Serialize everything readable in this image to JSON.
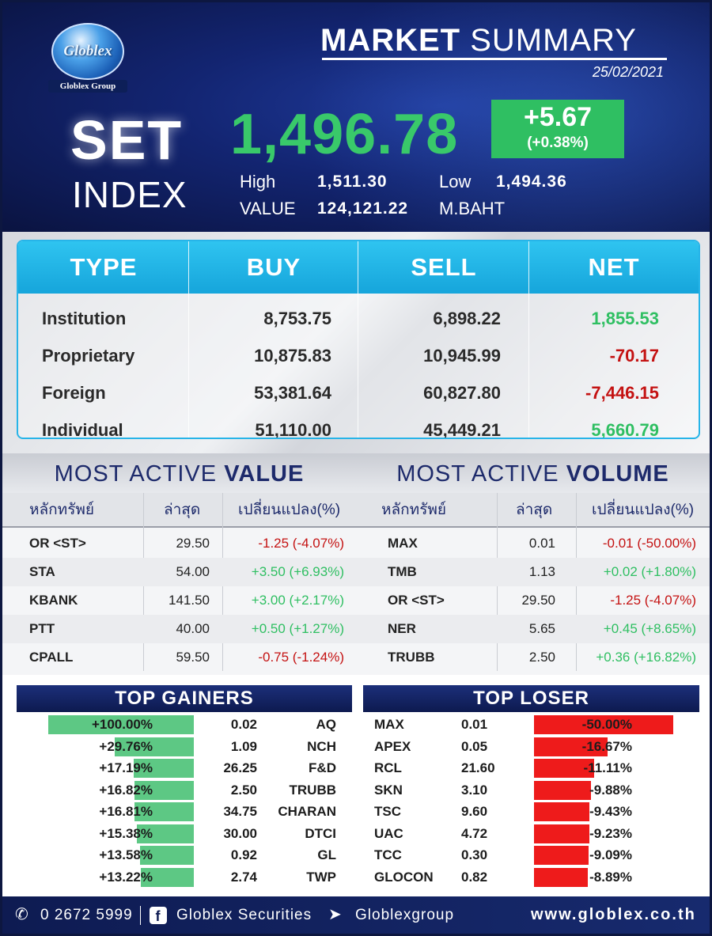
{
  "header": {
    "logo_text": "Globlex",
    "logo_group": "Globlex Group",
    "title_bold": "MARKET",
    "title_light": "SUMMARY",
    "date": "25/02/2021",
    "index_name_1": "SET",
    "index_name_2": "INDEX",
    "index_value": "1,496.78",
    "change": "+5.67",
    "change_pct": "(+0.38%)",
    "high_label": "High",
    "high_value": "1,511.30",
    "low_label": "Low",
    "low_value": "1,494.36",
    "value_label": "VALUE",
    "value_amount": "124,121.22",
    "value_unit": "M.BAHT",
    "colors": {
      "background": "#132572",
      "positive": "#39c96a",
      "change_box": "#2fbf62"
    }
  },
  "investor_table": {
    "headers": [
      "TYPE",
      "BUY",
      "SELL",
      "NET"
    ],
    "rows": [
      {
        "type": "Institution",
        "buy": "8,753.75",
        "sell": "6,898.22",
        "net": "1,855.53",
        "direction": "up"
      },
      {
        "type": "Proprietary",
        "buy": "10,875.83",
        "sell": "10,945.99",
        "net": "-70.17",
        "direction": "down"
      },
      {
        "type": "Foreign",
        "buy": "53,381.64",
        "sell": "60,827.80",
        "net": "-7,446.15",
        "direction": "down"
      },
      {
        "type": "Individual",
        "buy": "51,110.00",
        "sell": "45,449.21",
        "net": "5,660.79",
        "direction": "up"
      }
    ],
    "colors": {
      "header": "#16a5db",
      "positive": "#2fbf62",
      "negative": "#c41212"
    }
  },
  "most_active_value": {
    "title_light": "MOST ACTIVE",
    "title_bold": "VALUE",
    "col_symbol": "หลักทรัพย์",
    "col_last": "ล่าสุด",
    "col_change": "เปลี่ยนแปลง(%)",
    "rows": [
      {
        "symbol": "OR <ST>",
        "last": "29.50",
        "change": "-1.25 (-4.07%)",
        "direction": "down"
      },
      {
        "symbol": "STA",
        "last": "54.00",
        "change": "+3.50 (+6.93%)",
        "direction": "up"
      },
      {
        "symbol": "KBANK",
        "last": "141.50",
        "change": "+3.00 (+2.17%)",
        "direction": "up"
      },
      {
        "symbol": "PTT",
        "last": "40.00",
        "change": "+0.50 (+1.27%)",
        "direction": "up"
      },
      {
        "symbol": "CPALL",
        "last": "59.50",
        "change": "-0.75 (-1.24%)",
        "direction": "down"
      }
    ]
  },
  "most_active_volume": {
    "title_light": "MOST ACTIVE",
    "title_bold": "VOLUME",
    "col_symbol": "หลักทรัพย์",
    "col_last": "ล่าสุด",
    "col_change": "เปลี่ยนแปลง(%)",
    "rows": [
      {
        "symbol": "MAX",
        "last": "0.01",
        "change": "-0.01 (-50.00%)",
        "direction": "down"
      },
      {
        "symbol": "TMB",
        "last": "1.13",
        "change": "+0.02 (+1.80%)",
        "direction": "up"
      },
      {
        "symbol": "OR <ST>",
        "last": "29.50",
        "change": "-1.25 (-4.07%)",
        "direction": "down"
      },
      {
        "symbol": "NER",
        "last": "5.65",
        "change": "+0.45 (+8.65%)",
        "direction": "up"
      },
      {
        "symbol": "TRUBB",
        "last": "2.50",
        "change": "+0.36 (+16.82%)",
        "direction": "up"
      }
    ]
  },
  "top_gainers": {
    "title": "TOP GAINERS",
    "bar_color": "#5dc884",
    "rows": [
      {
        "pct": "+100.00%",
        "pct_value": 100.0,
        "last": "0.02",
        "symbol": "AQ"
      },
      {
        "pct": "+29.76%",
        "pct_value": 29.76,
        "last": "1.09",
        "symbol": "NCH"
      },
      {
        "pct": "+17.19%",
        "pct_value": 17.19,
        "last": "26.25",
        "symbol": "F&D"
      },
      {
        "pct": "+16.82%",
        "pct_value": 16.82,
        "last": "2.50",
        "symbol": "TRUBB"
      },
      {
        "pct": "+16.81%",
        "pct_value": 16.81,
        "last": "34.75",
        "symbol": "CHARAN"
      },
      {
        "pct": "+15.38%",
        "pct_value": 15.38,
        "last": "30.00",
        "symbol": "DTCI"
      },
      {
        "pct": "+13.58%",
        "pct_value": 13.58,
        "last": "0.92",
        "symbol": "GL"
      },
      {
        "pct": "+13.22%",
        "pct_value": 13.22,
        "last": "2.74",
        "symbol": "TWP"
      }
    ]
  },
  "top_loser": {
    "title": "TOP LOSER",
    "bar_color": "#ee1b1b",
    "rows": [
      {
        "symbol": "MAX",
        "last": "0.01",
        "pct": "-50.00%",
        "pct_value": 50.0
      },
      {
        "symbol": "APEX",
        "last": "0.05",
        "pct": "-16.67%",
        "pct_value": 16.67
      },
      {
        "symbol": "RCL",
        "last": "21.60",
        "pct": "-11.11%",
        "pct_value": 11.11
      },
      {
        "symbol": "SKN",
        "last": "3.10",
        "pct": "-9.88%",
        "pct_value": 9.88
      },
      {
        "symbol": "TSC",
        "last": "9.60",
        "pct": "-9.43%",
        "pct_value": 9.43
      },
      {
        "symbol": "UAC",
        "last": "4.72",
        "pct": "-9.23%",
        "pct_value": 9.23
      },
      {
        "symbol": "TCC",
        "last": "0.30",
        "pct": "-9.09%",
        "pct_value": 9.09
      },
      {
        "symbol": "GLOCON",
        "last": "0.82",
        "pct": "-8.89%",
        "pct_value": 8.89
      }
    ]
  },
  "footer": {
    "phone_icon": "phone-icon",
    "phone": "0 2672 5999",
    "facebook_icon": "facebook-icon",
    "facebook": "Globlex Securities",
    "telegram_icon": "telegram-icon",
    "telegram": "Globlexgroup",
    "website": "www.globlex.co.th"
  }
}
